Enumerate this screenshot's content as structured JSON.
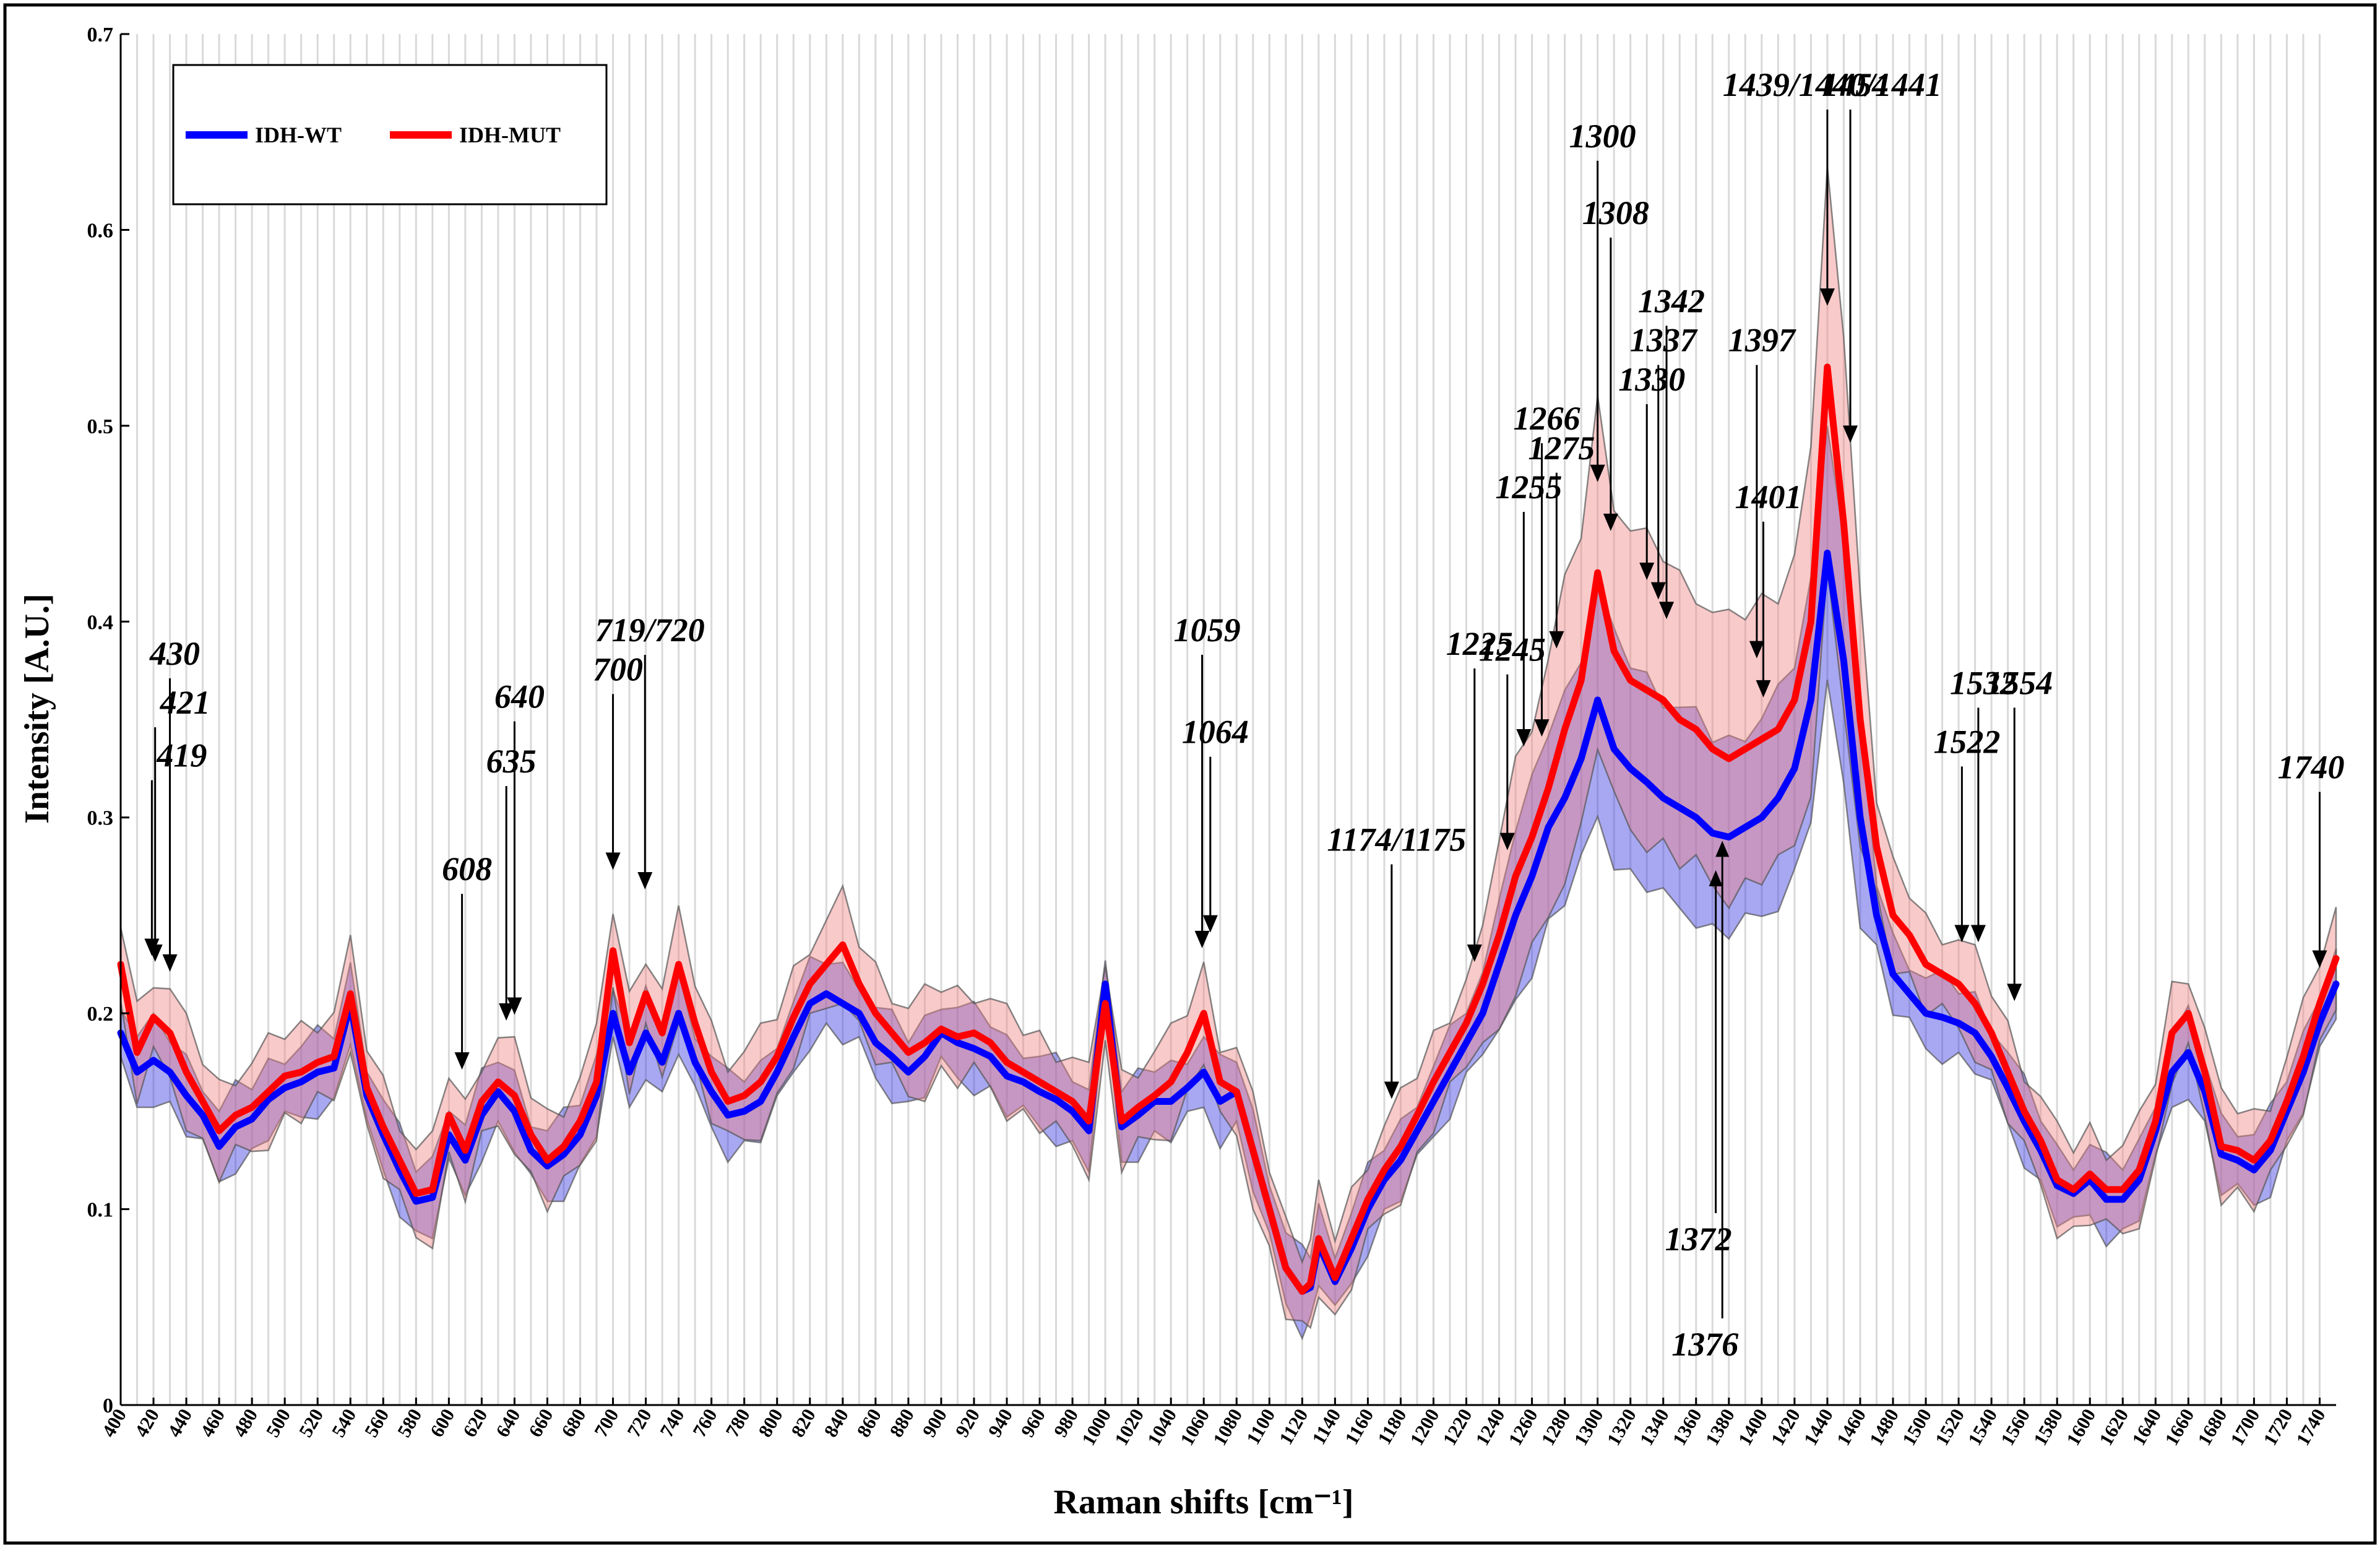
{
  "chart_data": {
    "type": "line",
    "title": "",
    "xlabel": "Raman shifts [cm⁻¹]",
    "ylabel": "Intensity [A.U.]",
    "xlim": [
      400,
      1750
    ],
    "ylim": [
      0,
      0.7
    ],
    "grid": "vertical",
    "legend_position": "top-left",
    "y_ticks": [
      0,
      0.1,
      0.2,
      0.3,
      0.4,
      0.5,
      0.6,
      0.7
    ],
    "y_tick_labels": [
      "0",
      "0.1",
      "0.2",
      "0.3",
      "0.4",
      "0.5",
      "0.6",
      "0.7"
    ],
    "x_ticks": [
      400,
      420,
      440,
      460,
      480,
      500,
      520,
      540,
      560,
      580,
      600,
      620,
      640,
      660,
      680,
      700,
      720,
      740,
      760,
      780,
      800,
      820,
      840,
      860,
      880,
      900,
      920,
      940,
      960,
      980,
      1000,
      1020,
      1040,
      1060,
      1080,
      1100,
      1120,
      1140,
      1160,
      1180,
      1200,
      1220,
      1240,
      1260,
      1280,
      1300,
      1320,
      1340,
      1360,
      1380,
      1400,
      1420,
      1440,
      1460,
      1480,
      1500,
      1520,
      1540,
      1560,
      1580,
      1600,
      1620,
      1640,
      1660,
      1680,
      1700,
      1720,
      1740
    ],
    "series": [
      {
        "name": "IDH-WT",
        "color": "#0000ff",
        "band_color": "#3030e0",
        "x": [
          400,
          410,
          420,
          430,
          440,
          450,
          460,
          470,
          480,
          490,
          500,
          510,
          520,
          530,
          540,
          550,
          560,
          570,
          580,
          590,
          600,
          610,
          620,
          630,
          640,
          650,
          660,
          670,
          680,
          690,
          700,
          710,
          720,
          730,
          740,
          750,
          760,
          770,
          780,
          790,
          800,
          810,
          820,
          830,
          840,
          850,
          860,
          870,
          880,
          890,
          900,
          910,
          920,
          930,
          940,
          950,
          960,
          970,
          980,
          990,
          1000,
          1010,
          1020,
          1030,
          1040,
          1050,
          1060,
          1070,
          1080,
          1090,
          1100,
          1110,
          1120,
          1125,
          1130,
          1140,
          1150,
          1160,
          1170,
          1180,
          1190,
          1200,
          1210,
          1220,
          1230,
          1240,
          1250,
          1260,
          1270,
          1280,
          1290,
          1300,
          1310,
          1320,
          1330,
          1340,
          1350,
          1360,
          1370,
          1380,
          1390,
          1400,
          1410,
          1420,
          1430,
          1440,
          1450,
          1460,
          1470,
          1480,
          1490,
          1500,
          1510,
          1520,
          1530,
          1540,
          1550,
          1560,
          1570,
          1580,
          1590,
          1600,
          1610,
          1620,
          1630,
          1640,
          1650,
          1660,
          1670,
          1680,
          1690,
          1700,
          1710,
          1720,
          1730,
          1740,
          1750
        ],
        "values": [
          0.19,
          0.17,
          0.176,
          0.17,
          0.158,
          0.148,
          0.132,
          0.142,
          0.146,
          0.156,
          0.162,
          0.165,
          0.17,
          0.172,
          0.205,
          0.158,
          0.138,
          0.12,
          0.104,
          0.106,
          0.138,
          0.125,
          0.148,
          0.16,
          0.15,
          0.13,
          0.122,
          0.128,
          0.138,
          0.158,
          0.2,
          0.17,
          0.19,
          0.175,
          0.2,
          0.175,
          0.16,
          0.148,
          0.15,
          0.155,
          0.17,
          0.188,
          0.205,
          0.21,
          0.205,
          0.2,
          0.185,
          0.178,
          0.17,
          0.178,
          0.19,
          0.185,
          0.182,
          0.178,
          0.168,
          0.165,
          0.16,
          0.156,
          0.15,
          0.14,
          0.215,
          0.142,
          0.148,
          0.155,
          0.155,
          0.162,
          0.17,
          0.155,
          0.16,
          0.13,
          0.1,
          0.07,
          0.058,
          0.06,
          0.082,
          0.063,
          0.08,
          0.1,
          0.115,
          0.125,
          0.14,
          0.155,
          0.17,
          0.185,
          0.2,
          0.225,
          0.25,
          0.27,
          0.295,
          0.31,
          0.33,
          0.36,
          0.335,
          0.325,
          0.318,
          0.31,
          0.305,
          0.3,
          0.292,
          0.29,
          0.295,
          0.3,
          0.31,
          0.325,
          0.36,
          0.435,
          0.38,
          0.3,
          0.25,
          0.22,
          0.21,
          0.2,
          0.198,
          0.195,
          0.19,
          0.178,
          0.162,
          0.145,
          0.13,
          0.112,
          0.108,
          0.115,
          0.105,
          0.105,
          0.115,
          0.14,
          0.17,
          0.18,
          0.16,
          0.128,
          0.125,
          0.12,
          0.13,
          0.15,
          0.17,
          0.195,
          0.215
        ]
      },
      {
        "name": "IDH-MUT",
        "color": "#ff0000",
        "band_color": "#f08080",
        "x": [
          400,
          410,
          420,
          430,
          440,
          450,
          460,
          470,
          480,
          490,
          500,
          510,
          520,
          530,
          540,
          550,
          560,
          570,
          580,
          590,
          600,
          610,
          620,
          630,
          640,
          650,
          660,
          670,
          680,
          690,
          700,
          710,
          720,
          730,
          740,
          750,
          760,
          770,
          780,
          790,
          800,
          810,
          820,
          830,
          840,
          850,
          860,
          870,
          880,
          890,
          900,
          910,
          920,
          930,
          940,
          950,
          960,
          970,
          980,
          990,
          1000,
          1010,
          1020,
          1030,
          1040,
          1050,
          1060,
          1070,
          1080,
          1090,
          1100,
          1110,
          1120,
          1125,
          1130,
          1140,
          1150,
          1160,
          1170,
          1180,
          1190,
          1200,
          1210,
          1220,
          1230,
          1240,
          1250,
          1260,
          1270,
          1280,
          1290,
          1300,
          1310,
          1320,
          1330,
          1340,
          1350,
          1360,
          1370,
          1380,
          1390,
          1400,
          1410,
          1420,
          1430,
          1440,
          1450,
          1460,
          1470,
          1480,
          1490,
          1500,
          1510,
          1520,
          1530,
          1540,
          1550,
          1560,
          1570,
          1580,
          1590,
          1600,
          1610,
          1620,
          1630,
          1640,
          1650,
          1660,
          1670,
          1680,
          1690,
          1700,
          1710,
          1720,
          1730,
          1740,
          1750
        ],
        "values": [
          0.225,
          0.18,
          0.198,
          0.19,
          0.17,
          0.155,
          0.14,
          0.148,
          0.152,
          0.16,
          0.168,
          0.17,
          0.175,
          0.178,
          0.21,
          0.162,
          0.142,
          0.125,
          0.108,
          0.11,
          0.148,
          0.13,
          0.155,
          0.165,
          0.158,
          0.138,
          0.125,
          0.132,
          0.145,
          0.165,
          0.232,
          0.185,
          0.21,
          0.19,
          0.225,
          0.195,
          0.17,
          0.155,
          0.158,
          0.165,
          0.178,
          0.198,
          0.215,
          0.225,
          0.235,
          0.215,
          0.2,
          0.19,
          0.18,
          0.185,
          0.192,
          0.188,
          0.19,
          0.185,
          0.175,
          0.17,
          0.165,
          0.16,
          0.155,
          0.145,
          0.205,
          0.145,
          0.152,
          0.158,
          0.165,
          0.18,
          0.2,
          0.165,
          0.16,
          0.13,
          0.1,
          0.07,
          0.058,
          0.062,
          0.085,
          0.065,
          0.085,
          0.105,
          0.12,
          0.132,
          0.148,
          0.165,
          0.18,
          0.195,
          0.215,
          0.24,
          0.27,
          0.29,
          0.315,
          0.345,
          0.37,
          0.425,
          0.385,
          0.37,
          0.365,
          0.36,
          0.35,
          0.345,
          0.335,
          0.33,
          0.335,
          0.34,
          0.345,
          0.36,
          0.4,
          0.53,
          0.45,
          0.35,
          0.285,
          0.25,
          0.24,
          0.225,
          0.22,
          0.215,
          0.205,
          0.19,
          0.17,
          0.15,
          0.135,
          0.115,
          0.11,
          0.118,
          0.11,
          0.11,
          0.12,
          0.145,
          0.19,
          0.2,
          0.17,
          0.132,
          0.13,
          0.125,
          0.135,
          0.155,
          0.178,
          0.205,
          0.228
        ]
      }
    ],
    "annotations": [
      {
        "label": "419",
        "x": 419,
        "y": 0.228
      },
      {
        "label": "421",
        "x": 421,
        "y": 0.225
      },
      {
        "label": "430",
        "x": 430,
        "y": 0.22
      },
      {
        "label": "608",
        "x": 608,
        "y": 0.17
      },
      {
        "label": "635",
        "x": 635,
        "y": 0.195
      },
      {
        "label": "640",
        "x": 640,
        "y": 0.198
      },
      {
        "label": "700",
        "x": 700,
        "y": 0.272
      },
      {
        "label": "719/720",
        "x": 719.5,
        "y": 0.262
      },
      {
        "label": "1059",
        "x": 1059,
        "y": 0.232
      },
      {
        "label": "1064",
        "x": 1064,
        "y": 0.24
      },
      {
        "label": "1174/1175",
        "x": 1174.5,
        "y": 0.155
      },
      {
        "label": "1225",
        "x": 1225,
        "y": 0.225
      },
      {
        "label": "1245",
        "x": 1245,
        "y": 0.282
      },
      {
        "label": "1255",
        "x": 1255,
        "y": 0.335
      },
      {
        "label": "1266",
        "x": 1266,
        "y": 0.34
      },
      {
        "label": "1275",
        "x": 1275,
        "y": 0.385
      },
      {
        "label": "1300",
        "x": 1300,
        "y": 0.47
      },
      {
        "label": "1308",
        "x": 1308,
        "y": 0.445
      },
      {
        "label": "1330",
        "x": 1330,
        "y": 0.42
      },
      {
        "label": "1337",
        "x": 1337,
        "y": 0.41
      },
      {
        "label": "1342",
        "x": 1342,
        "y": 0.4
      },
      {
        "label": "1372",
        "x": 1372,
        "y": 0.275
      },
      {
        "label": "1376",
        "x": 1376,
        "y": 0.29
      },
      {
        "label": "1397",
        "x": 1397,
        "y": 0.38
      },
      {
        "label": "1401",
        "x": 1401,
        "y": 0.36
      },
      {
        "label": "1439/1440/1441",
        "x": 1440,
        "y": 0.56
      },
      {
        "label": "1454",
        "x": 1454,
        "y": 0.49
      },
      {
        "label": "1522",
        "x": 1522,
        "y": 0.235
      },
      {
        "label": "1532",
        "x": 1532,
        "y": 0.235
      },
      {
        "label": "1554",
        "x": 1554,
        "y": 0.205
      },
      {
        "label": "1740",
        "x": 1740,
        "y": 0.222
      }
    ]
  }
}
